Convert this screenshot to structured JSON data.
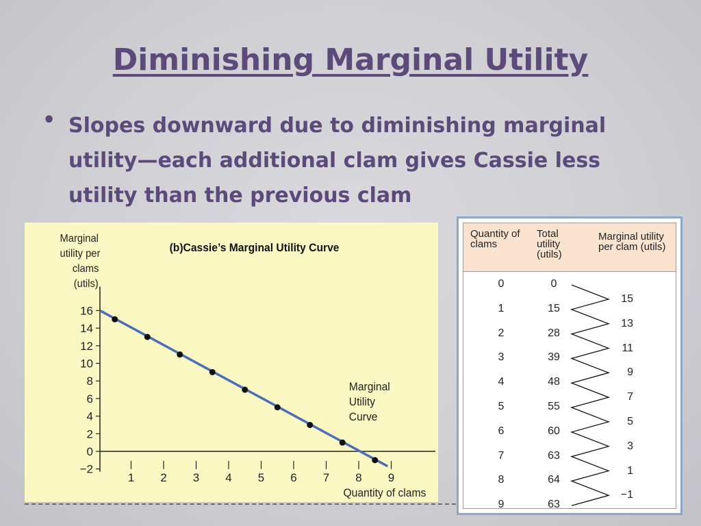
{
  "slide": {
    "title": "Diminishing Marginal Utility",
    "bullet": "Slopes downward due to diminishing marginal utility—each additional clam gives Cassie less utility than the previous clam"
  },
  "chart_data": {
    "type": "line",
    "title": "(b)Cassie’s Marginal Utility Curve",
    "ylabel": "Marginal utility per clams (utils)",
    "xlabel": "Quantity of clams",
    "series": [
      {
        "name": "Marginal Utility Curve",
        "x": [
          0.5,
          1.5,
          2.5,
          3.5,
          4.5,
          5.5,
          6.5,
          7.5,
          8.5
        ],
        "values": [
          15,
          13,
          11,
          9,
          7,
          5,
          3,
          1,
          -1
        ]
      }
    ],
    "x_ticks": [
      "1",
      "2",
      "3",
      "4",
      "5",
      "6",
      "7",
      "8",
      "9"
    ],
    "y_ticks": [
      "16",
      "14",
      "12",
      "10",
      "8",
      "6",
      "4",
      "2",
      "0",
      "−2"
    ],
    "xlim": [
      0,
      9.5
    ],
    "ylim": [
      -2,
      16
    ],
    "grid": false,
    "colors": {
      "line": "#4a6fb5",
      "point": "#111111",
      "background": "#fcf8c4"
    }
  },
  "table": {
    "headers": {
      "quantity": "Quantity of clams",
      "total": "Total utility (utils)",
      "marginal": "Marginal utility per clam (utils)"
    },
    "quantity": [
      "0",
      "1",
      "2",
      "3",
      "4",
      "5",
      "6",
      "7",
      "8",
      "9"
    ],
    "total_utility": [
      "0",
      "15",
      "28",
      "39",
      "48",
      "55",
      "60",
      "63",
      "64",
      "63"
    ],
    "marginal_utility": [
      "15",
      "13",
      "11",
      "9",
      "7",
      "5",
      "3",
      "1",
      "−1"
    ],
    "header_color": "#fbe4cf"
  }
}
